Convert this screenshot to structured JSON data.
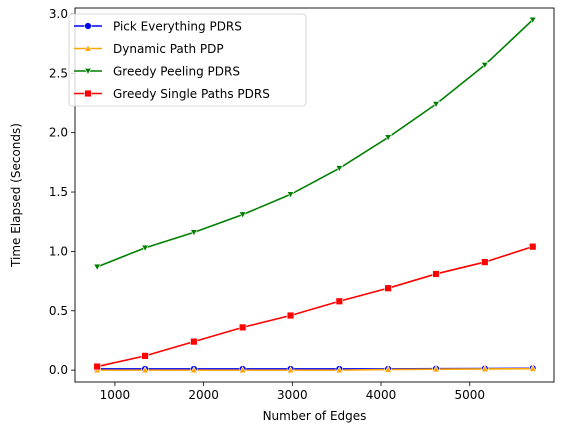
{
  "chart_data": {
    "type": "line",
    "title": "",
    "xlabel": "Number of Edges",
    "ylabel": "Time Elapsed (Seconds)",
    "xlim": [
      550,
      5950
    ],
    "ylim": [
      -0.1,
      3.05
    ],
    "xticks": [
      1000,
      2000,
      3000,
      4000,
      5000
    ],
    "yticks": [
      0.0,
      0.5,
      1.0,
      1.5,
      2.0,
      2.5,
      3.0
    ],
    "xtick_labels": [
      "1000",
      "2000",
      "3000",
      "4000",
      "5000"
    ],
    "ytick_labels": [
      "0.0",
      "0.5",
      "1.0",
      "1.5",
      "2.0",
      "2.5",
      "3.0"
    ],
    "grid": false,
    "legend_position": "top-left",
    "x": [
      800,
      1340,
      1890,
      2440,
      2980,
      3530,
      4080,
      4620,
      5170,
      5710
    ],
    "series": [
      {
        "name": "Pick Everything PDRS",
        "color": "#0000ff",
        "marker": "circle",
        "values": [
          0.01,
          0.01,
          0.01,
          0.01,
          0.01,
          0.01,
          0.01,
          0.012,
          0.013,
          0.015
        ]
      },
      {
        "name": "Dynamic Path PDP",
        "color": "#ffa500",
        "marker": "triangle-up",
        "values": [
          0.0,
          0.0,
          0.0,
          0.0,
          0.0,
          0.0,
          0.005,
          0.008,
          0.01,
          0.012
        ]
      },
      {
        "name": "Greedy Peeling PDRS",
        "color": "#008000",
        "marker": "triangle-down",
        "values": [
          0.87,
          1.03,
          1.16,
          1.31,
          1.48,
          1.7,
          1.96,
          2.24,
          2.57,
          2.95
        ]
      },
      {
        "name": "Greedy Single Paths PDRS",
        "color": "#ff0000",
        "marker": "square",
        "values": [
          0.03,
          0.12,
          0.24,
          0.36,
          0.46,
          0.58,
          0.69,
          0.81,
          0.91,
          1.04
        ]
      }
    ]
  }
}
